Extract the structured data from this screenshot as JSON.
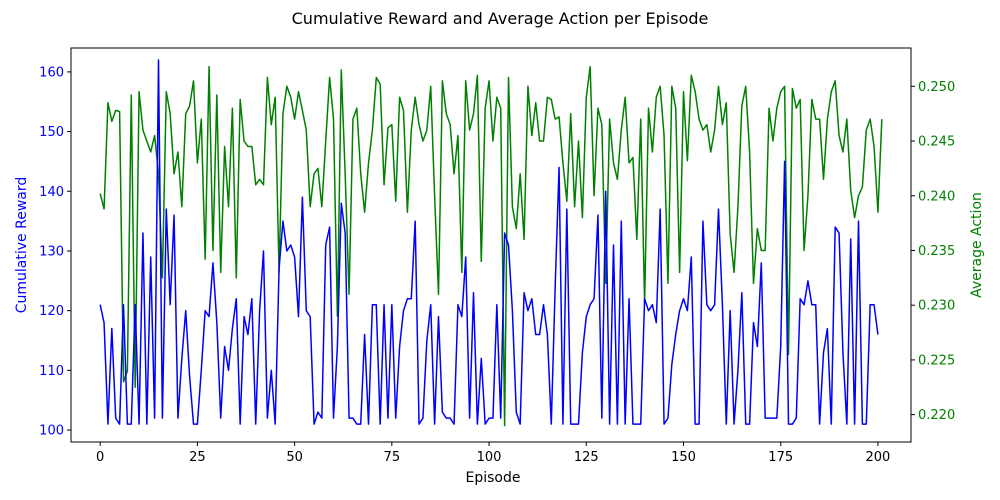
{
  "chart_data": {
    "type": "line",
    "title": "Cumulative Reward and Average Action per Episode",
    "xlabel": "Episode",
    "ylabel_left": "Cumulative Reward",
    "ylabel_right": "Average Action",
    "xlim": [
      -7.5,
      208.5
    ],
    "ylim_left": [
      98,
      164
    ],
    "ylim_right": [
      0.2175,
      0.2535
    ],
    "x_ticks": [
      0,
      25,
      50,
      75,
      100,
      125,
      150,
      175,
      200
    ],
    "y_left_ticks": [
      100,
      110,
      120,
      130,
      140,
      150,
      160
    ],
    "y_right_ticks": [
      0.22,
      0.225,
      0.23,
      0.235,
      0.24,
      0.245,
      0.25
    ],
    "y_right_tick_labels": [
      "0.220",
      "0.225",
      "0.230",
      "0.235",
      "0.240",
      "0.245",
      "0.250"
    ],
    "grid": false,
    "series": [
      {
        "axis": "left",
        "color": "#0000ff",
        "values": [
          121,
          118,
          101,
          117,
          102,
          101,
          121,
          101,
          101,
          121,
          101,
          133,
          101,
          129,
          102,
          162,
          102,
          137,
          121,
          136,
          102,
          112,
          120,
          109,
          101,
          101,
          110,
          120,
          119,
          128,
          118,
          102,
          114,
          110,
          117,
          122,
          101,
          119,
          116,
          122,
          101,
          120,
          130,
          102,
          110,
          101,
          127,
          135,
          130,
          131,
          129,
          119,
          139,
          120,
          119,
          101,
          103,
          102,
          131,
          134,
          102,
          114,
          138,
          133,
          102,
          102,
          101,
          101,
          116,
          101,
          121,
          121,
          101,
          121,
          102,
          121,
          102,
          114,
          120,
          122,
          122,
          135,
          101,
          102,
          115,
          121,
          101,
          119,
          103,
          102,
          102,
          101,
          121,
          119,
          129,
          102,
          123,
          101,
          112,
          101,
          102,
          102,
          121,
          102,
          133,
          131,
          120,
          103,
          101,
          123,
          120,
          122,
          116,
          116,
          121,
          116,
          101,
          124,
          144,
          101,
          137,
          101,
          101,
          101,
          113,
          119,
          121,
          122,
          136,
          102,
          140,
          101,
          131,
          101,
          135,
          101,
          122,
          101,
          101,
          101,
          122,
          120,
          121,
          118,
          137,
          101,
          102,
          111,
          116,
          120,
          122,
          120,
          129,
          101,
          101,
          135,
          121,
          120,
          121,
          137,
          121,
          101,
          120,
          101,
          110,
          123,
          101,
          101,
          118,
          114,
          128,
          102,
          102,
          102,
          102,
          114,
          145,
          101,
          101,
          102,
          122,
          121,
          125,
          121,
          121,
          101,
          113,
          117,
          101,
          134,
          133,
          113,
          101,
          132,
          101,
          135,
          101,
          101,
          121,
          121,
          116
        ]
      },
      {
        "axis": "right",
        "color": "#008000",
        "values": [
          0.2402,
          0.2388,
          0.2485,
          0.2468,
          0.2478,
          0.2477,
          0.223,
          0.224,
          0.2492,
          0.2225,
          0.2495,
          0.246,
          0.245,
          0.244,
          0.2455,
          0.242,
          0.2325,
          0.2495,
          0.2475,
          0.242,
          0.244,
          0.239,
          0.2475,
          0.2482,
          0.2505,
          0.243,
          0.247,
          0.2342,
          0.2518,
          0.235,
          0.2492,
          0.233,
          0.2445,
          0.239,
          0.248,
          0.2325,
          0.2488,
          0.245,
          0.2445,
          0.2445,
          0.241,
          0.2415,
          0.241,
          0.2508,
          0.2465,
          0.249,
          0.233,
          0.2475,
          0.25,
          0.249,
          0.247,
          0.2495,
          0.2478,
          0.246,
          0.239,
          0.242,
          0.2425,
          0.239,
          0.245,
          0.2508,
          0.247,
          0.229,
          0.2515,
          0.242,
          0.231,
          0.247,
          0.248,
          0.242,
          0.2385,
          0.243,
          0.246,
          0.2508,
          0.2502,
          0.241,
          0.2462,
          0.2465,
          0.2395,
          0.249,
          0.2478,
          0.2385,
          0.246,
          0.249,
          0.2465,
          0.245,
          0.246,
          0.25,
          0.24,
          0.231,
          0.2505,
          0.2475,
          0.2465,
          0.242,
          0.2455,
          0.233,
          0.2505,
          0.246,
          0.2475,
          0.251,
          0.234,
          0.248,
          0.2505,
          0.245,
          0.249,
          0.248,
          0.219,
          0.2508,
          0.239,
          0.237,
          0.242,
          0.236,
          0.25,
          0.2455,
          0.2485,
          0.245,
          0.245,
          0.249,
          0.2488,
          0.247,
          0.2472,
          0.243,
          0.2395,
          0.2475,
          0.239,
          0.245,
          0.238,
          0.249,
          0.2518,
          0.24,
          0.248,
          0.2465,
          0.232,
          0.247,
          0.243,
          0.2415,
          0.246,
          0.249,
          0.243,
          0.2435,
          0.236,
          0.247,
          0.2302,
          0.248,
          0.244,
          0.249,
          0.25,
          0.2455,
          0.232,
          0.25,
          0.248,
          0.233,
          0.2495,
          0.2432,
          0.251,
          0.2495,
          0.247,
          0.246,
          0.2465,
          0.244,
          0.246,
          0.25,
          0.2465,
          0.2485,
          0.2365,
          0.233,
          0.239,
          0.2482,
          0.25,
          0.244,
          0.232,
          0.237,
          0.235,
          0.235,
          0.248,
          0.245,
          0.248,
          0.2495,
          0.25,
          0.2255,
          0.2498,
          0.248,
          0.2488,
          0.235,
          0.24,
          0.2488,
          0.247,
          0.247,
          0.2415,
          0.247,
          0.2495,
          0.2505,
          0.2455,
          0.244,
          0.247,
          0.2405,
          0.238,
          0.24,
          0.2408,
          0.246,
          0.247,
          0.2445,
          0.2385,
          0.247
        ]
      }
    ]
  }
}
